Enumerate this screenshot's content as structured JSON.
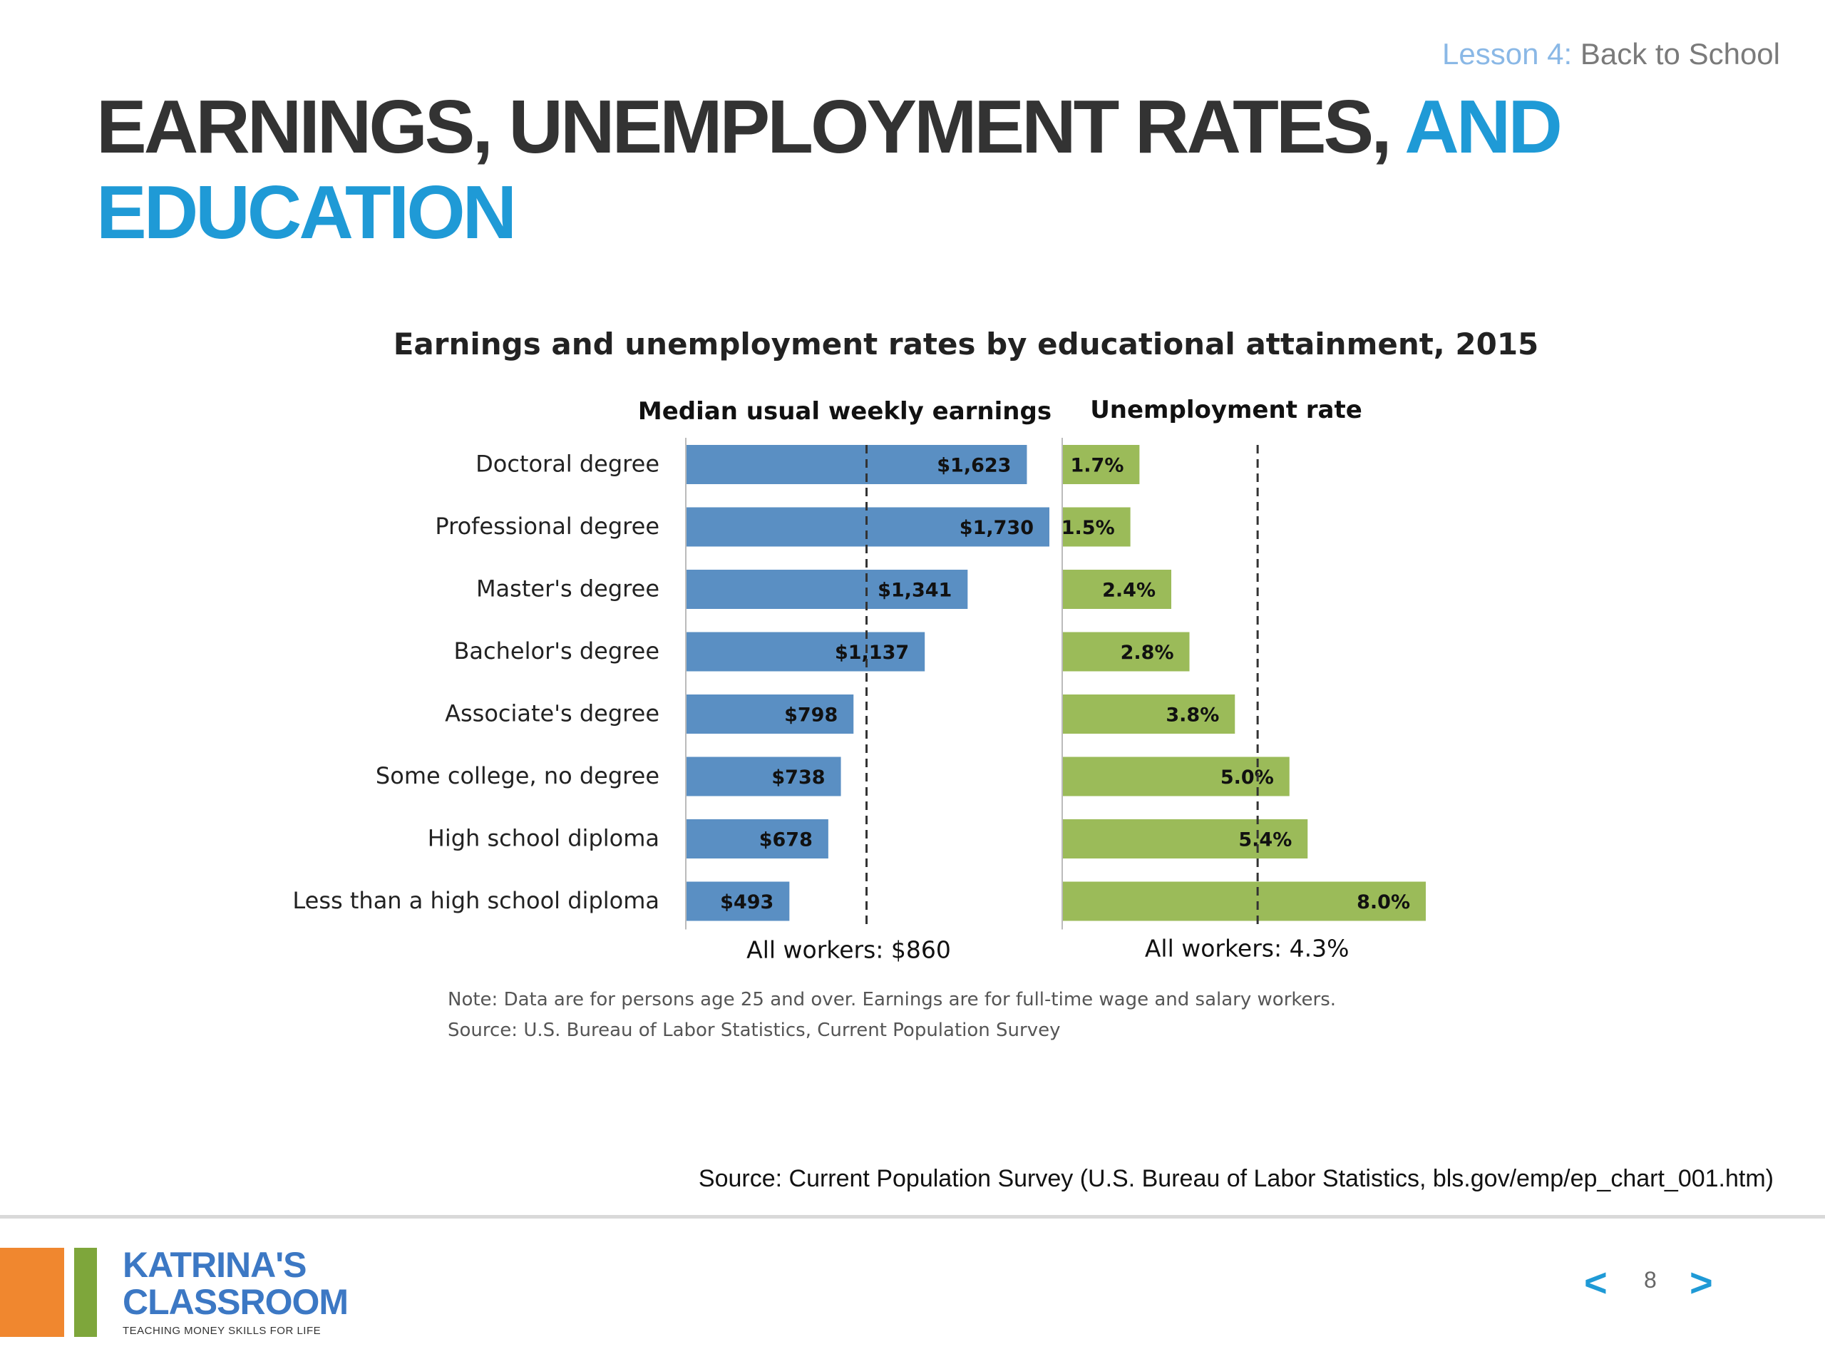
{
  "header": {
    "lesson_number": "Lesson 4",
    "lesson_colon": ":",
    "lesson_title": "Back to School"
  },
  "title": {
    "part1": "EARNINGS, UNEMPLOYMENT RATES,",
    "part2": "AND EDUCATION"
  },
  "chart_data": {
    "type": "bar",
    "title": "Earnings and unemployment rates by educational attainment, 2015",
    "categories": [
      "Doctoral degree",
      "Professional degree",
      "Master's degree",
      "Bachelor's degree",
      "Associate's degree",
      "Some college, no degree",
      "High school diploma",
      "Less than a high school diploma"
    ],
    "series": [
      {
        "name": "Median usual weekly earnings",
        "values": [
          1623,
          1730,
          1341,
          1137,
          798,
          738,
          678,
          493
        ],
        "labels": [
          "$1,623",
          "$1,730",
          "$1,341",
          "$1,137",
          "$798",
          "$738",
          "$678",
          "$493"
        ],
        "reference_value": 860,
        "reference_label": "All workers: $860",
        "color": "#5a8fc3"
      },
      {
        "name": "Unemployment rate",
        "values": [
          1.7,
          1.5,
          2.4,
          2.8,
          3.8,
          5.0,
          5.4,
          8.0
        ],
        "labels": [
          "1.7%",
          "1.5%",
          "2.4%",
          "2.8%",
          "3.8%",
          "5.0%",
          "5.4%",
          "8.0%"
        ],
        "reference_value": 4.3,
        "reference_label": "All workers: 4.3%",
        "color": "#9bbb59"
      }
    ],
    "orientation": "horizontal",
    "note": "Note: Data are for persons age 25 and over. Earnings are for full-time wage and salary workers.",
    "source": "Source: U.S. Bureau of Labor Statistics, Current Population Survey"
  },
  "footer": {
    "source": "Source: Current Population Survey (U.S. Bureau of Labor Statistics, bls.gov/emp/ep_chart_001.htm)",
    "page_number": "8",
    "prev_icon": "<",
    "next_icon": ">"
  },
  "logo": {
    "line1": "KATRINA'S",
    "line2": "CLASSROOM",
    "tagline": "TEACHING MONEY SKILLS FOR LIFE",
    "colors": [
      "#f0872f",
      "#7ea63b",
      "#3c78c4"
    ]
  }
}
